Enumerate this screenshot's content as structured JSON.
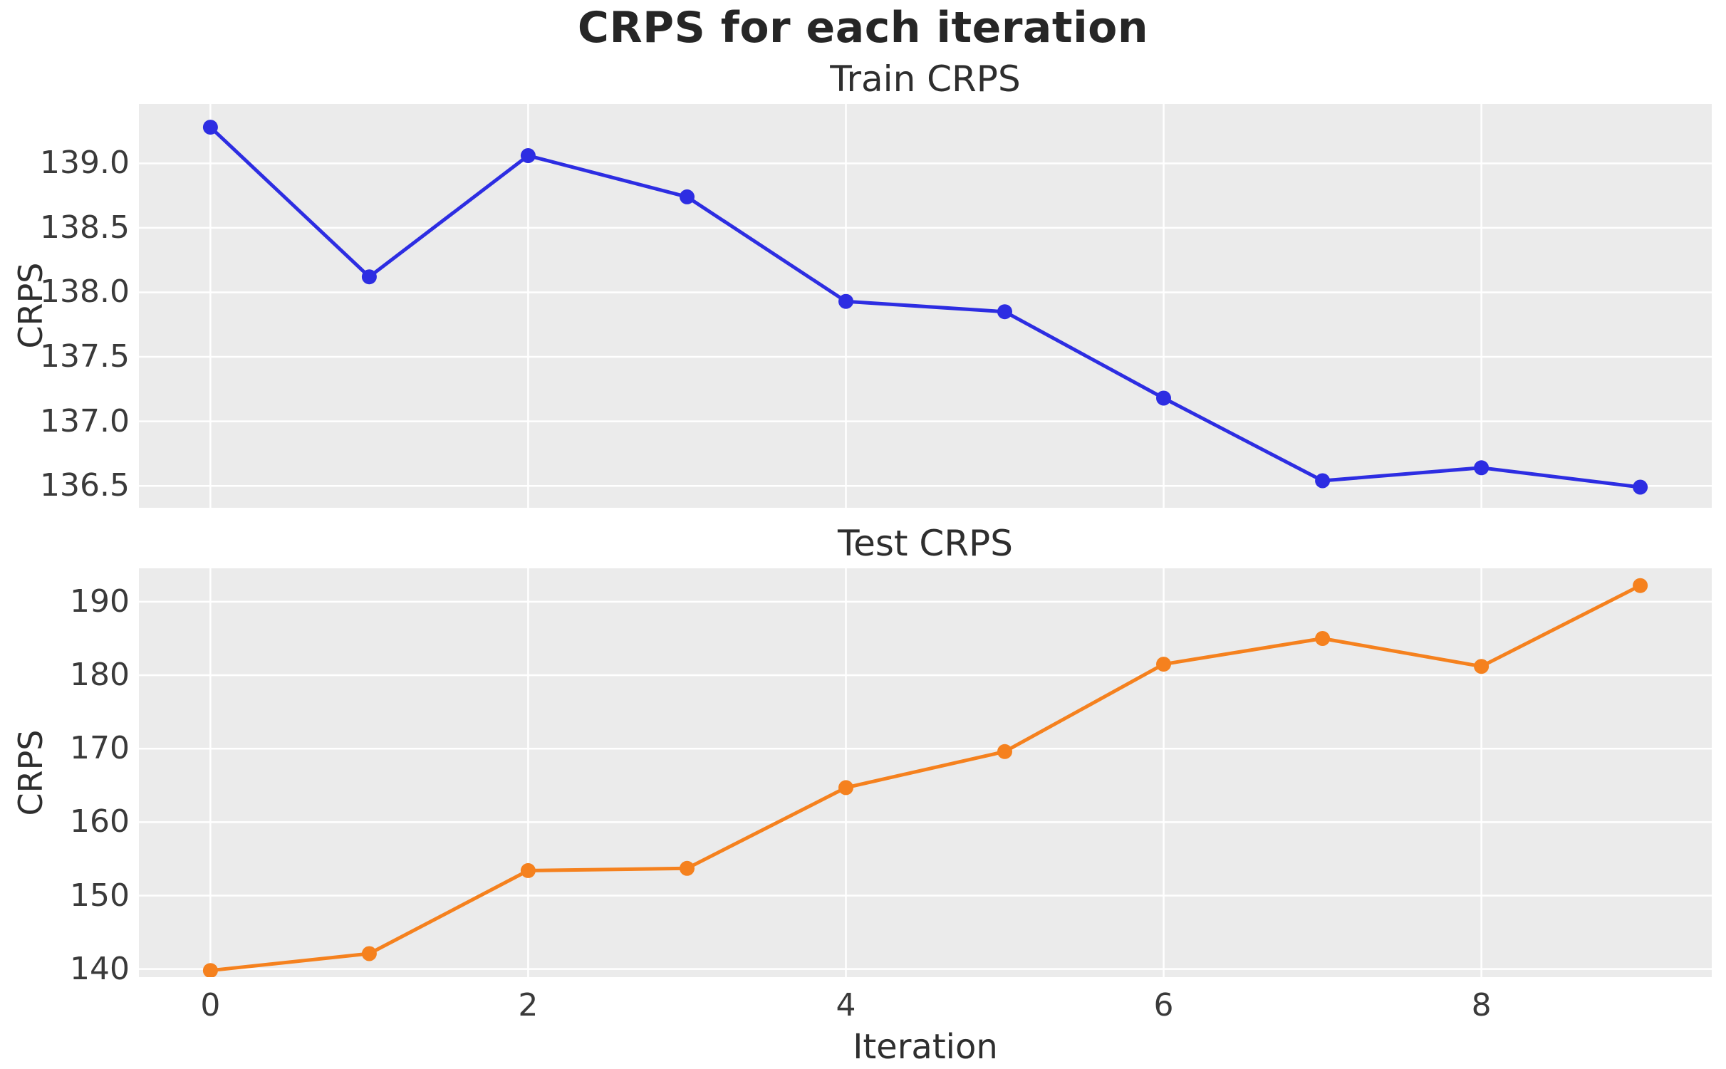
{
  "figure": {
    "title": "CRPS for each iteration",
    "background_color": "#ffffff",
    "axes_background_color": "#ebebeb",
    "grid_color": "#ffffff",
    "tick_label_color": "#3a3a3a",
    "text_color": "#2e2e2e"
  },
  "chart_data": [
    {
      "type": "line",
      "title": "Train CRPS",
      "xlabel": "",
      "ylabel": "CRPS",
      "x": [
        0,
        1,
        2,
        3,
        4,
        5,
        6,
        7,
        8,
        9
      ],
      "series": [
        {
          "name": "Train CRPS",
          "color": "#2d2de2",
          "marker": "o",
          "values": [
            139.28,
            138.12,
            139.06,
            138.74,
            137.93,
            137.85,
            137.18,
            136.54,
            136.64,
            136.49
          ]
        }
      ],
      "xticks": [
        0,
        2,
        4,
        6,
        8
      ],
      "xtick_labels": [],
      "yticks": [
        139.0,
        138.5,
        138.0,
        137.5,
        137.0,
        136.5
      ],
      "ytick_labels": [
        "139.0",
        "138.5",
        "138.0",
        "137.5",
        "137.0",
        "136.5"
      ],
      "xlim": [
        -0.45,
        9.45
      ],
      "ylim": [
        136.33,
        139.46
      ],
      "grid": true,
      "legend": false
    },
    {
      "type": "line",
      "title": "Test CRPS",
      "xlabel": "Iteration",
      "ylabel": "CRPS",
      "x": [
        0,
        1,
        2,
        3,
        4,
        5,
        6,
        7,
        8,
        9
      ],
      "series": [
        {
          "name": "Test CRPS",
          "color": "#f5811e",
          "marker": "o",
          "values": [
            139.8,
            142.1,
            153.4,
            153.7,
            164.7,
            169.6,
            181.5,
            185.0,
            181.2,
            192.2
          ]
        }
      ],
      "xticks": [
        0,
        2,
        4,
        6,
        8
      ],
      "xtick_labels": [
        "0",
        "2",
        "4",
        "6",
        "8"
      ],
      "yticks": [
        190,
        180,
        170,
        160,
        150,
        140
      ],
      "ytick_labels": [
        "190",
        "180",
        "170",
        "160",
        "150",
        "140"
      ],
      "xlim": [
        -0.45,
        9.45
      ],
      "ylim": [
        138.9,
        194.55
      ],
      "grid": true,
      "legend": false
    }
  ]
}
